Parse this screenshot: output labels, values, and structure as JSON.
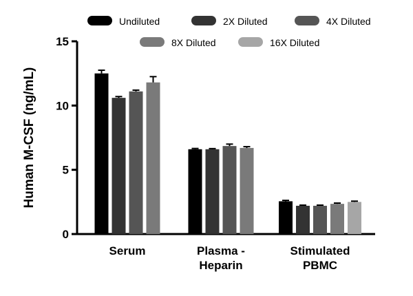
{
  "chart_data": {
    "type": "bar",
    "ylabel": "Human M-CSF (ng/mL)",
    "xlabel": "",
    "ylim": [
      0,
      15
    ],
    "yticks": [
      0,
      5,
      10,
      15
    ],
    "categories": [
      [
        "Serum"
      ],
      [
        "Plasma -",
        "Heparin"
      ],
      [
        "Stimulated",
        "PBMC"
      ]
    ],
    "legend_position": "top",
    "series": [
      {
        "name": "Undiluted",
        "color": "#000000",
        "values": [
          12.5,
          6.6,
          2.55
        ],
        "errors": [
          0.25,
          0.06,
          0.07
        ]
      },
      {
        "name": "2X Diluted",
        "color": "#333333",
        "values": [
          10.6,
          6.6,
          2.2
        ],
        "errors": [
          0.1,
          0.05,
          0.05
        ]
      },
      {
        "name": "4X Diluted",
        "color": "#555555",
        "values": [
          11.1,
          6.85,
          2.2
        ],
        "errors": [
          0.1,
          0.15,
          0.05
        ]
      },
      {
        "name": "8X Diluted",
        "color": "#7a7a7a",
        "values": [
          11.8,
          6.7,
          2.35
        ],
        "errors": [
          0.45,
          0.1,
          0.06
        ]
      },
      {
        "name": "16X Diluted",
        "color": "#a6a6a6",
        "values": [
          null,
          null,
          2.5
        ],
        "errors": [
          null,
          null,
          0.06
        ]
      }
    ]
  }
}
